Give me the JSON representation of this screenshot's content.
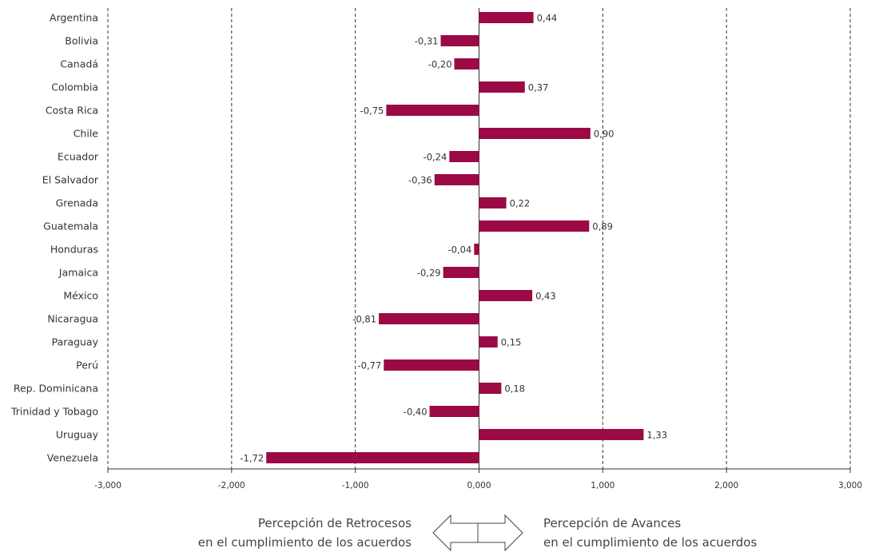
{
  "chart_data": {
    "type": "bar",
    "orientation": "horizontal",
    "categories": [
      "Argentina",
      "Bolivia",
      "Canadá",
      "Colombia",
      "Costa Rica",
      "Chile",
      "Ecuador",
      "El Salvador",
      "Grenada",
      "Guatemala",
      "Honduras",
      "Jamaica",
      "México",
      "Nicaragua",
      "Paraguay",
      "Perú",
      "Rep. Dominicana",
      "Trinidad y Tobago",
      "Uruguay",
      "Venezuela"
    ],
    "values": [
      0.44,
      -0.31,
      -0.2,
      0.37,
      -0.75,
      0.9,
      -0.24,
      -0.36,
      0.22,
      0.89,
      -0.04,
      -0.29,
      0.43,
      -0.81,
      0.15,
      -0.77,
      0.18,
      -0.4,
      1.33,
      -1.72
    ],
    "data_labels": [
      "0,44",
      "-0,31",
      "-0,20",
      "0,37",
      "-0,75",
      "0,90",
      "-0,24",
      "-0,36",
      "0,22",
      "0,89",
      "-0,04",
      "-0,29",
      "0,43",
      "-0,81",
      "0,15",
      "-0,77",
      "0,18",
      "-0,40",
      "1,33",
      "-1,72"
    ],
    "xlim": [
      -3,
      3
    ],
    "x_ticks": [
      -3,
      -2,
      -1,
      0,
      1,
      2,
      3
    ],
    "x_tick_labels": [
      "-3,000",
      "-2,000",
      "-1,000",
      "0,000",
      "1,000",
      "2,000",
      "3,000"
    ],
    "grid": "vertical dashed",
    "title": "",
    "xlabel": "",
    "ylabel": "",
    "bar_color": "#9b0a45"
  },
  "captions": {
    "left_line1": "Percepción de Retrocesos",
    "left_line2": "en el cumplimiento de los acuerdos",
    "right_line1": "Percepción de Avances",
    "right_line2": "en el cumplimiento de los acuerdos"
  },
  "arrow_icon": "double-arrow-icon"
}
